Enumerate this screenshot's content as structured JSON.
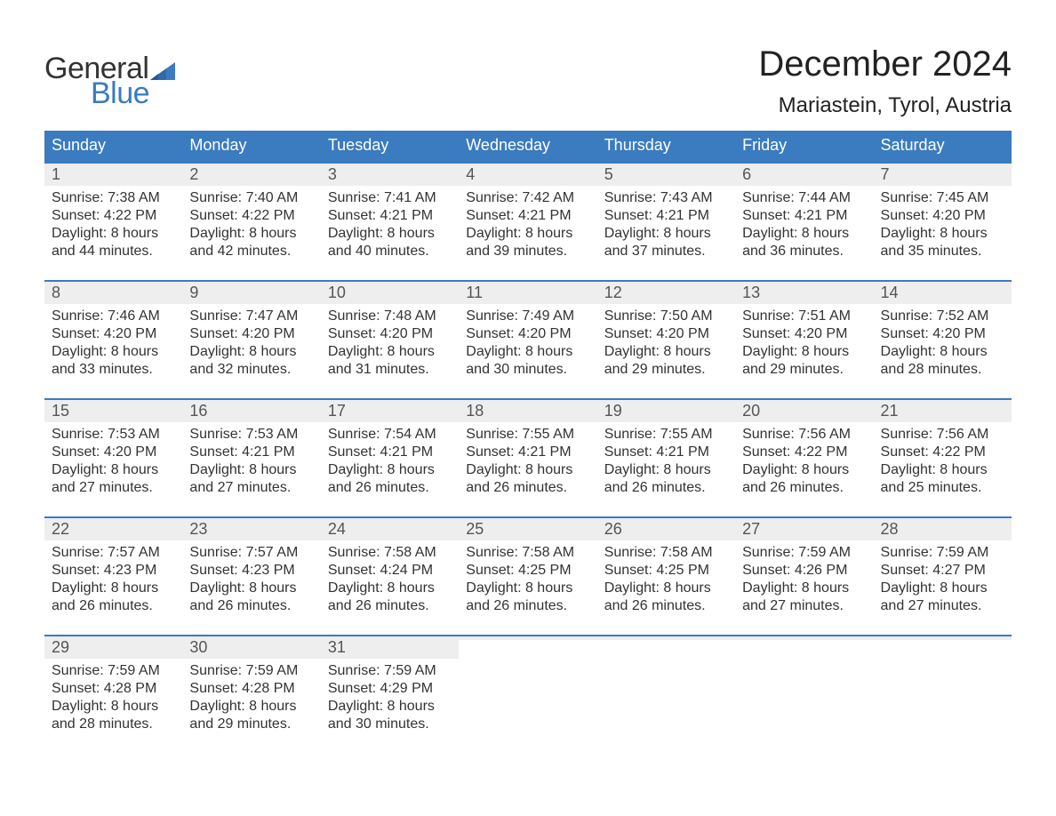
{
  "brand": {
    "general": "General",
    "blue": "Blue",
    "flag_color": "#3b7bbf"
  },
  "title": "December 2024",
  "location": "Mariastein, Tyrol, Austria",
  "colors": {
    "header_bg": "#3b7bbf",
    "header_text": "#ffffff",
    "daynum_bg": "#eeeeee",
    "daynum_text": "#555555",
    "body_text": "#333333",
    "week_border": "#3b7bbf",
    "page_bg": "#ffffff"
  },
  "typography": {
    "title_fontsize": 40,
    "location_fontsize": 24,
    "header_fontsize": 18,
    "daynum_fontsize": 18,
    "body_fontsize": 16
  },
  "day_names": [
    "Sunday",
    "Monday",
    "Tuesday",
    "Wednesday",
    "Thursday",
    "Friday",
    "Saturday"
  ],
  "labels": {
    "sunrise": "Sunrise:",
    "sunset": "Sunset:",
    "daylight": "Daylight:"
  },
  "weeks": [
    [
      {
        "day": "1",
        "sunrise": "7:38 AM",
        "sunset": "4:22 PM",
        "daylight1": "8 hours",
        "daylight2": "and 44 minutes."
      },
      {
        "day": "2",
        "sunrise": "7:40 AM",
        "sunset": "4:22 PM",
        "daylight1": "8 hours",
        "daylight2": "and 42 minutes."
      },
      {
        "day": "3",
        "sunrise": "7:41 AM",
        "sunset": "4:21 PM",
        "daylight1": "8 hours",
        "daylight2": "and 40 minutes."
      },
      {
        "day": "4",
        "sunrise": "7:42 AM",
        "sunset": "4:21 PM",
        "daylight1": "8 hours",
        "daylight2": "and 39 minutes."
      },
      {
        "day": "5",
        "sunrise": "7:43 AM",
        "sunset": "4:21 PM",
        "daylight1": "8 hours",
        "daylight2": "and 37 minutes."
      },
      {
        "day": "6",
        "sunrise": "7:44 AM",
        "sunset": "4:21 PM",
        "daylight1": "8 hours",
        "daylight2": "and 36 minutes."
      },
      {
        "day": "7",
        "sunrise": "7:45 AM",
        "sunset": "4:20 PM",
        "daylight1": "8 hours",
        "daylight2": "and 35 minutes."
      }
    ],
    [
      {
        "day": "8",
        "sunrise": "7:46 AM",
        "sunset": "4:20 PM",
        "daylight1": "8 hours",
        "daylight2": "and 33 minutes."
      },
      {
        "day": "9",
        "sunrise": "7:47 AM",
        "sunset": "4:20 PM",
        "daylight1": "8 hours",
        "daylight2": "and 32 minutes."
      },
      {
        "day": "10",
        "sunrise": "7:48 AM",
        "sunset": "4:20 PM",
        "daylight1": "8 hours",
        "daylight2": "and 31 minutes."
      },
      {
        "day": "11",
        "sunrise": "7:49 AM",
        "sunset": "4:20 PM",
        "daylight1": "8 hours",
        "daylight2": "and 30 minutes."
      },
      {
        "day": "12",
        "sunrise": "7:50 AM",
        "sunset": "4:20 PM",
        "daylight1": "8 hours",
        "daylight2": "and 29 minutes."
      },
      {
        "day": "13",
        "sunrise": "7:51 AM",
        "sunset": "4:20 PM",
        "daylight1": "8 hours",
        "daylight2": "and 29 minutes."
      },
      {
        "day": "14",
        "sunrise": "7:52 AM",
        "sunset": "4:20 PM",
        "daylight1": "8 hours",
        "daylight2": "and 28 minutes."
      }
    ],
    [
      {
        "day": "15",
        "sunrise": "7:53 AM",
        "sunset": "4:20 PM",
        "daylight1": "8 hours",
        "daylight2": "and 27 minutes."
      },
      {
        "day": "16",
        "sunrise": "7:53 AM",
        "sunset": "4:21 PM",
        "daylight1": "8 hours",
        "daylight2": "and 27 minutes."
      },
      {
        "day": "17",
        "sunrise": "7:54 AM",
        "sunset": "4:21 PM",
        "daylight1": "8 hours",
        "daylight2": "and 26 minutes."
      },
      {
        "day": "18",
        "sunrise": "7:55 AM",
        "sunset": "4:21 PM",
        "daylight1": "8 hours",
        "daylight2": "and 26 minutes."
      },
      {
        "day": "19",
        "sunrise": "7:55 AM",
        "sunset": "4:21 PM",
        "daylight1": "8 hours",
        "daylight2": "and 26 minutes."
      },
      {
        "day": "20",
        "sunrise": "7:56 AM",
        "sunset": "4:22 PM",
        "daylight1": "8 hours",
        "daylight2": "and 26 minutes."
      },
      {
        "day": "21",
        "sunrise": "7:56 AM",
        "sunset": "4:22 PM",
        "daylight1": "8 hours",
        "daylight2": "and 25 minutes."
      }
    ],
    [
      {
        "day": "22",
        "sunrise": "7:57 AM",
        "sunset": "4:23 PM",
        "daylight1": "8 hours",
        "daylight2": "and 26 minutes."
      },
      {
        "day": "23",
        "sunrise": "7:57 AM",
        "sunset": "4:23 PM",
        "daylight1": "8 hours",
        "daylight2": "and 26 minutes."
      },
      {
        "day": "24",
        "sunrise": "7:58 AM",
        "sunset": "4:24 PM",
        "daylight1": "8 hours",
        "daylight2": "and 26 minutes."
      },
      {
        "day": "25",
        "sunrise": "7:58 AM",
        "sunset": "4:25 PM",
        "daylight1": "8 hours",
        "daylight2": "and 26 minutes."
      },
      {
        "day": "26",
        "sunrise": "7:58 AM",
        "sunset": "4:25 PM",
        "daylight1": "8 hours",
        "daylight2": "and 26 minutes."
      },
      {
        "day": "27",
        "sunrise": "7:59 AM",
        "sunset": "4:26 PM",
        "daylight1": "8 hours",
        "daylight2": "and 27 minutes."
      },
      {
        "day": "28",
        "sunrise": "7:59 AM",
        "sunset": "4:27 PM",
        "daylight1": "8 hours",
        "daylight2": "and 27 minutes."
      }
    ],
    [
      {
        "day": "29",
        "sunrise": "7:59 AM",
        "sunset": "4:28 PM",
        "daylight1": "8 hours",
        "daylight2": "and 28 minutes."
      },
      {
        "day": "30",
        "sunrise": "7:59 AM",
        "sunset": "4:28 PM",
        "daylight1": "8 hours",
        "daylight2": "and 29 minutes."
      },
      {
        "day": "31",
        "sunrise": "7:59 AM",
        "sunset": "4:29 PM",
        "daylight1": "8 hours",
        "daylight2": "and 30 minutes."
      },
      {
        "empty": true
      },
      {
        "empty": true
      },
      {
        "empty": true
      },
      {
        "empty": true
      }
    ]
  ]
}
